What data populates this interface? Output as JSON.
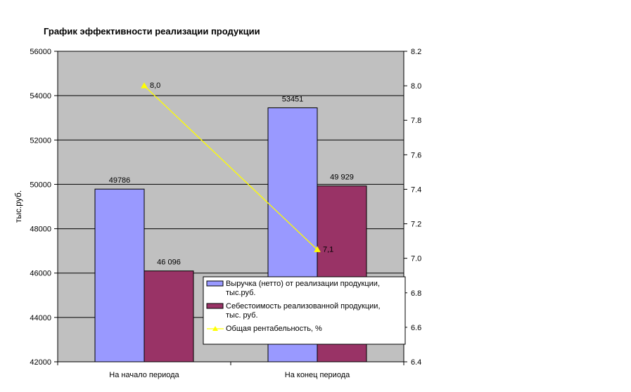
{
  "chart_data": {
    "type": "bar",
    "title": "График эффективности реализации продукции",
    "ylabel": "тыс.руб.",
    "categories": [
      "На начало периода",
      "На конец периода"
    ],
    "ylim": [
      42000,
      56000
    ],
    "y_ticks": [
      "42000",
      "44000",
      "46000",
      "48000",
      "50000",
      "52000",
      "54000",
      "56000"
    ],
    "y2lim": [
      6.4,
      8.2
    ],
    "y2_ticks": [
      "6.4",
      "6.6",
      "6.8",
      "7.0",
      "7.2",
      "7.4",
      "7.6",
      "7.8",
      "8.0",
      "8.2"
    ],
    "grid": true,
    "plot_background": "#c0c0c0",
    "legend_position": "bottom-right",
    "series": [
      {
        "name": "Выручка (нетто) от реализации продукции, тыс.руб.",
        "legend_lines": [
          "Выручка (нетто) от реализации продукции,",
          "тыс.руб."
        ],
        "type": "bar",
        "axis": "left",
        "color": "#9999ff",
        "values": [
          49786,
          53451
        ],
        "labels": [
          "49786",
          "53451"
        ]
      },
      {
        "name": "Себестоимость реализованной продукции, тыс. руб.",
        "legend_lines": [
          "Себестоимость реализованной продукции,",
          "тыс. руб."
        ],
        "type": "bar",
        "axis": "left",
        "color": "#993366",
        "values": [
          46096,
          49929
        ],
        "labels": [
          "46 096",
          "49 929"
        ]
      },
      {
        "name": "Общая рентабельность, %",
        "legend_lines": [
          "Общая рентабельность, %"
        ],
        "type": "line",
        "axis": "right",
        "color": "#ffff00",
        "marker": "triangle",
        "values": [
          8.0,
          7.05
        ],
        "labels": [
          "8,0",
          "7,1"
        ]
      }
    ]
  }
}
